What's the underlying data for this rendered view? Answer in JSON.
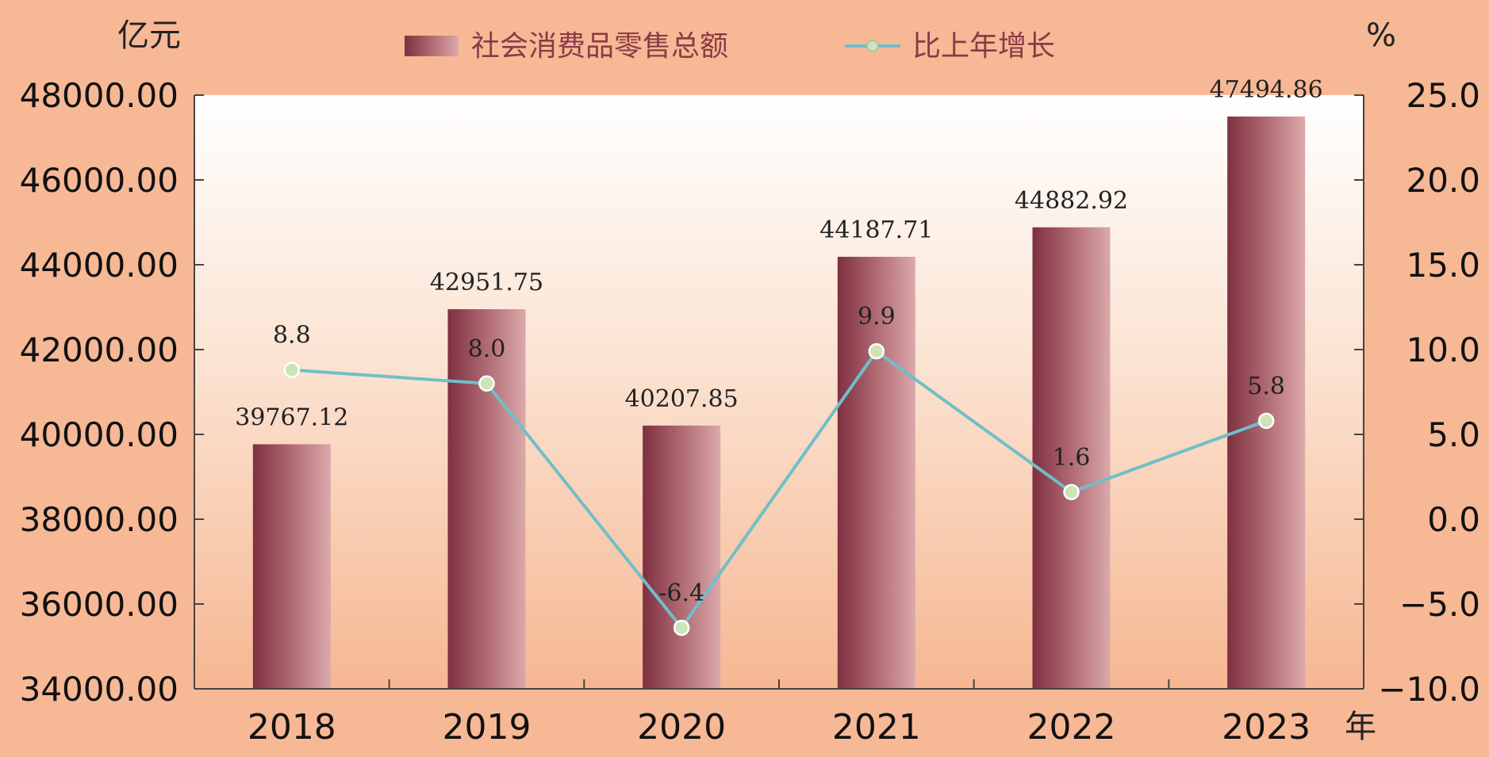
{
  "chart_data": {
    "type": "bar",
    "categories": [
      "2018",
      "2019",
      "2020",
      "2021",
      "2022",
      "2023"
    ],
    "series": [
      {
        "name": "社会消费品零售总额",
        "type": "bar",
        "axis": "left",
        "values": [
          39767.12,
          42951.75,
          40207.85,
          44187.71,
          44882.92,
          47494.86
        ],
        "data_labels": [
          "39767.12",
          "42951.75",
          "40207.85",
          "44187.71",
          "44882.92",
          "47494.86"
        ]
      },
      {
        "name": "比上年增长",
        "type": "line",
        "axis": "right",
        "values": [
          8.8,
          8.0,
          -6.4,
          9.9,
          1.6,
          5.8
        ],
        "data_labels": [
          "8.8",
          "8.0",
          "-6.4",
          "9.9",
          "1.6",
          "5.8"
        ]
      }
    ],
    "left_axis": {
      "unit": "亿元",
      "ylim": [
        34000,
        48000
      ],
      "ticks": [
        "34000.00",
        "36000.00",
        "38000.00",
        "40000.00",
        "42000.00",
        "44000.00",
        "46000.00",
        "48000.00"
      ]
    },
    "right_axis": {
      "unit": "%",
      "ylim": [
        -10,
        25
      ],
      "ticks": [
        "−10.0",
        "−5.0",
        "0.0",
        "5.0",
        "10.0",
        "15.0",
        "20.0",
        "25.0"
      ]
    },
    "x_unit": "年",
    "legend_position": "top-center",
    "grid": false,
    "colors": {
      "background": "#f7b896",
      "bar": "#9c4a55",
      "line": "#6fbfc9",
      "marker": "#cfe3b8"
    }
  }
}
